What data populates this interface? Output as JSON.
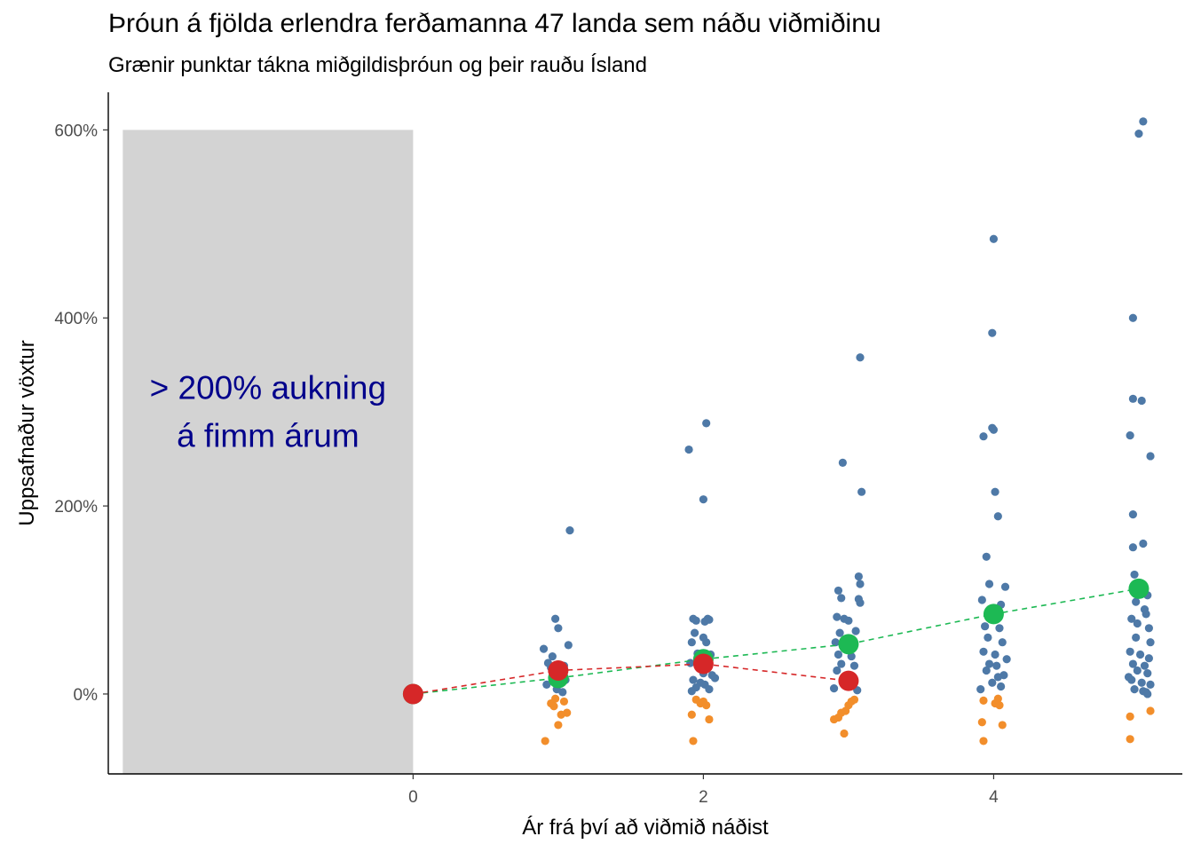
{
  "title": "Þróun á fjölda erlendra ferðamanna 47 landa sem náðu viðmiðinu",
  "subtitle": "Grænir punktar tákna miðgildisþróun og þeir rauðu Ísland",
  "colors": {
    "positive_points": "#4E79A7",
    "negative_points": "#F28E2B",
    "median": "#1DB954",
    "iceland": "#D62728",
    "shade": "#D3D3D3",
    "annotation": "#00008B"
  },
  "chart_data": {
    "type": "scatter",
    "title": "Þróun á fjölda erlendra ferðamanna 47 landa sem náðu viðmiðinu",
    "subtitle": "Grænir punktar tákna miðgildisþróun og þeir rauðu Ísland",
    "xlabel": "Ár frá því að viðmið náðist",
    "ylabel": "Uppsafnaður vöxtur",
    "xlim": [
      -2.1,
      5.3
    ],
    "ylim": [
      -0.85,
      6.4
    ],
    "x_ticks": [
      0,
      2,
      4
    ],
    "x_tick_labels": [
      "0",
      "2",
      "4"
    ],
    "y_ticks": [
      0,
      2,
      4,
      6
    ],
    "y_tick_labels": [
      "0%",
      "200%",
      "400%",
      "600%"
    ],
    "grid": false,
    "shaded_region": {
      "x": [
        -2.0,
        0
      ],
      "y": [
        -0.85,
        6.0
      ],
      "label": [
        "> 200% aukning",
        "á fimm árum"
      ]
    },
    "series": [
      {
        "name": "countries",
        "points": [
          {
            "x": 0.03,
            "y": 0.0
          },
          {
            "x": 0.9,
            "y": 0.48
          },
          {
            "x": 0.93,
            "y": 0.33
          },
          {
            "x": 0.95,
            "y": 0.28
          },
          {
            "x": 0.97,
            "y": 0.18
          },
          {
            "x": 0.92,
            "y": 0.1
          },
          {
            "x": 0.96,
            "y": 0.4
          },
          {
            "x": 0.98,
            "y": 0.8
          },
          {
            "x": 1.0,
            "y": 0.7
          },
          {
            "x": 1.01,
            "y": 0.22
          },
          {
            "x": 1.02,
            "y": 0.12
          },
          {
            "x": 1.04,
            "y": 0.3
          },
          {
            "x": 1.05,
            "y": 0.15
          },
          {
            "x": 1.07,
            "y": 0.52
          },
          {
            "x": 1.08,
            "y": 1.74
          },
          {
            "x": 0.99,
            "y": 0.05
          },
          {
            "x": 1.03,
            "y": 0.02
          },
          {
            "x": 1.9,
            "y": 2.6
          },
          {
            "x": 2.0,
            "y": 2.07
          },
          {
            "x": 2.02,
            "y": 2.88
          },
          {
            "x": 1.93,
            "y": 0.8
          },
          {
            "x": 1.95,
            "y": 0.78
          },
          {
            "x": 2.01,
            "y": 0.77
          },
          {
            "x": 2.03,
            "y": 0.8
          },
          {
            "x": 2.04,
            "y": 0.79
          },
          {
            "x": 1.94,
            "y": 0.65
          },
          {
            "x": 2.0,
            "y": 0.6
          },
          {
            "x": 2.02,
            "y": 0.55
          },
          {
            "x": 1.92,
            "y": 0.55
          },
          {
            "x": 1.96,
            "y": 0.43
          },
          {
            "x": 2.05,
            "y": 0.42
          },
          {
            "x": 1.91,
            "y": 0.33
          },
          {
            "x": 1.97,
            "y": 0.28
          },
          {
            "x": 2.0,
            "y": 0.22
          },
          {
            "x": 2.06,
            "y": 0.2
          },
          {
            "x": 1.93,
            "y": 0.15
          },
          {
            "x": 1.98,
            "y": 0.12
          },
          {
            "x": 2.01,
            "y": 0.1
          },
          {
            "x": 1.95,
            "y": 0.07
          },
          {
            "x": 2.04,
            "y": 0.05
          },
          {
            "x": 1.92,
            "y": 0.03
          },
          {
            "x": 2.08,
            "y": 0.17
          },
          {
            "x": 1.99,
            "y": 0.36
          },
          {
            "x": 3.08,
            "y": 3.58
          },
          {
            "x": 2.96,
            "y": 2.46
          },
          {
            "x": 3.09,
            "y": 2.15
          },
          {
            "x": 3.07,
            "y": 1.25
          },
          {
            "x": 3.08,
            "y": 1.17
          },
          {
            "x": 2.93,
            "y": 1.1
          },
          {
            "x": 2.95,
            "y": 1.02
          },
          {
            "x": 3.07,
            "y": 1.01
          },
          {
            "x": 3.08,
            "y": 0.97
          },
          {
            "x": 2.92,
            "y": 0.82
          },
          {
            "x": 2.97,
            "y": 0.8
          },
          {
            "x": 3.0,
            "y": 0.78
          },
          {
            "x": 2.94,
            "y": 0.65
          },
          {
            "x": 3.05,
            "y": 0.67
          },
          {
            "x": 2.91,
            "y": 0.55
          },
          {
            "x": 2.98,
            "y": 0.5
          },
          {
            "x": 2.93,
            "y": 0.42
          },
          {
            "x": 3.02,
            "y": 0.4
          },
          {
            "x": 2.95,
            "y": 0.32
          },
          {
            "x": 3.04,
            "y": 0.3
          },
          {
            "x": 2.92,
            "y": 0.25
          },
          {
            "x": 3.0,
            "y": 0.2
          },
          {
            "x": 2.96,
            "y": 0.14
          },
          {
            "x": 3.03,
            "y": 0.1
          },
          {
            "x": 2.9,
            "y": 0.06
          },
          {
            "x": 3.06,
            "y": 0.04
          },
          {
            "x": 4.0,
            "y": 4.84
          },
          {
            "x": 3.99,
            "y": 3.84
          },
          {
            "x": 3.99,
            "y": 2.83
          },
          {
            "x": 4.0,
            "y": 2.81
          },
          {
            "x": 3.93,
            "y": 2.74
          },
          {
            "x": 4.01,
            "y": 2.15
          },
          {
            "x": 4.03,
            "y": 1.89
          },
          {
            "x": 3.95,
            "y": 1.46
          },
          {
            "x": 3.97,
            "y": 1.17
          },
          {
            "x": 4.08,
            "y": 1.14
          },
          {
            "x": 3.92,
            "y": 1.0
          },
          {
            "x": 4.05,
            "y": 0.95
          },
          {
            "x": 3.98,
            "y": 0.88
          },
          {
            "x": 4.02,
            "y": 0.8
          },
          {
            "x": 3.94,
            "y": 0.72
          },
          {
            "x": 4.04,
            "y": 0.7
          },
          {
            "x": 3.96,
            "y": 0.6
          },
          {
            "x": 4.06,
            "y": 0.55
          },
          {
            "x": 3.93,
            "y": 0.45
          },
          {
            "x": 4.01,
            "y": 0.42
          },
          {
            "x": 4.09,
            "y": 0.37
          },
          {
            "x": 3.97,
            "y": 0.32
          },
          {
            "x": 4.02,
            "y": 0.3
          },
          {
            "x": 3.95,
            "y": 0.25
          },
          {
            "x": 4.07,
            "y": 0.2
          },
          {
            "x": 4.03,
            "y": 0.18
          },
          {
            "x": 3.99,
            "y": 0.12
          },
          {
            "x": 4.05,
            "y": 0.08
          },
          {
            "x": 3.91,
            "y": 0.05
          },
          {
            "x": 5.03,
            "y": 6.09
          },
          {
            "x": 5.0,
            "y": 5.96
          },
          {
            "x": 4.96,
            "y": 4.0
          },
          {
            "x": 4.96,
            "y": 3.14
          },
          {
            "x": 5.02,
            "y": 3.12
          },
          {
            "x": 4.94,
            "y": 2.75
          },
          {
            "x": 5.08,
            "y": 2.53
          },
          {
            "x": 4.96,
            "y": 1.91
          },
          {
            "x": 5.03,
            "y": 1.6
          },
          {
            "x": 4.96,
            "y": 1.56
          },
          {
            "x": 4.97,
            "y": 1.27
          },
          {
            "x": 5.06,
            "y": 1.05
          },
          {
            "x": 4.98,
            "y": 0.98
          },
          {
            "x": 5.04,
            "y": 0.9
          },
          {
            "x": 5.05,
            "y": 0.85
          },
          {
            "x": 4.95,
            "y": 0.8
          },
          {
            "x": 4.99,
            "y": 0.75
          },
          {
            "x": 5.07,
            "y": 0.7
          },
          {
            "x": 4.98,
            "y": 0.6
          },
          {
            "x": 5.08,
            "y": 0.55
          },
          {
            "x": 4.94,
            "y": 0.45
          },
          {
            "x": 5.01,
            "y": 0.42
          },
          {
            "x": 5.07,
            "y": 0.38
          },
          {
            "x": 4.96,
            "y": 0.32
          },
          {
            "x": 5.04,
            "y": 0.3
          },
          {
            "x": 4.99,
            "y": 0.25
          },
          {
            "x": 5.06,
            "y": 0.22
          },
          {
            "x": 4.95,
            "y": 0.15
          },
          {
            "x": 5.02,
            "y": 0.12
          },
          {
            "x": 5.08,
            "y": 0.1
          },
          {
            "x": 4.97,
            "y": 0.05
          },
          {
            "x": 5.03,
            "y": 0.03
          },
          {
            "x": 5.05,
            "y": 0.02
          },
          {
            "x": 4.93,
            "y": 0.18
          },
          {
            "x": 0.91,
            "y": -0.5
          },
          {
            "x": 0.95,
            "y": -0.1
          },
          {
            "x": 0.97,
            "y": -0.13
          },
          {
            "x": 1.02,
            "y": -0.22
          },
          {
            "x": 1.04,
            "y": -0.08
          },
          {
            "x": 1.06,
            "y": -0.2
          },
          {
            "x": 1.0,
            "y": -0.33
          },
          {
            "x": 0.98,
            "y": -0.05
          },
          {
            "x": 1.93,
            "y": -0.5
          },
          {
            "x": 1.92,
            "y": -0.22
          },
          {
            "x": 1.95,
            "y": -0.06
          },
          {
            "x": 1.98,
            "y": -0.1
          },
          {
            "x": 2.0,
            "y": -0.08
          },
          {
            "x": 2.04,
            "y": -0.27
          },
          {
            "x": 2.02,
            "y": -0.12
          },
          {
            "x": 2.97,
            "y": -0.42
          },
          {
            "x": 2.9,
            "y": -0.27
          },
          {
            "x": 2.93,
            "y": -0.25
          },
          {
            "x": 2.95,
            "y": -0.2
          },
          {
            "x": 3.0,
            "y": -0.12
          },
          {
            "x": 3.02,
            "y": -0.08
          },
          {
            "x": 3.04,
            "y": -0.06
          },
          {
            "x": 2.98,
            "y": -0.18
          },
          {
            "x": 3.93,
            "y": -0.5
          },
          {
            "x": 3.92,
            "y": -0.3
          },
          {
            "x": 3.93,
            "y": -0.07
          },
          {
            "x": 4.03,
            "y": -0.05
          },
          {
            "x": 4.06,
            "y": -0.33
          },
          {
            "x": 4.01,
            "y": -0.1
          },
          {
            "x": 4.04,
            "y": -0.12
          },
          {
            "x": 4.94,
            "y": -0.48
          },
          {
            "x": 4.94,
            "y": -0.24
          },
          {
            "x": 5.08,
            "y": -0.18
          },
          {
            "x": 5.06,
            "y": 0.0
          }
        ]
      },
      {
        "name": "median",
        "points": [
          {
            "x": 0,
            "y": 0.0
          },
          {
            "x": 1,
            "y": 0.17
          },
          {
            "x": 2,
            "y": 0.37
          },
          {
            "x": 3,
            "y": 0.53
          },
          {
            "x": 4,
            "y": 0.85
          },
          {
            "x": 5,
            "y": 1.12
          }
        ]
      },
      {
        "name": "Ísland",
        "points": [
          {
            "x": 0,
            "y": 0.0
          },
          {
            "x": 1,
            "y": 0.25
          },
          {
            "x": 2,
            "y": 0.32
          },
          {
            "x": 3,
            "y": 0.14
          }
        ]
      }
    ]
  }
}
